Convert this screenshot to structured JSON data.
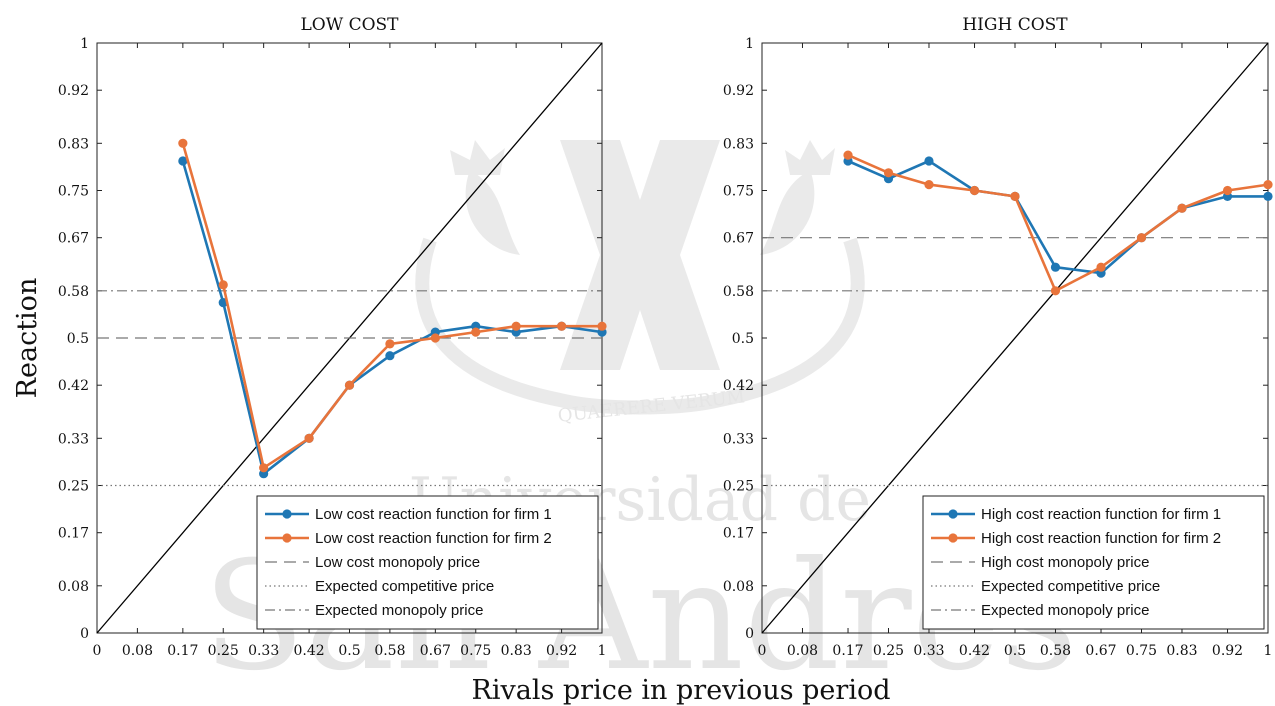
{
  "figure": {
    "ylabel": "Reaction",
    "xlabel": "Rivals price in previous period",
    "watermark": {
      "motto": "QUAERERE VERUM",
      "line1": "Universidad de",
      "line2": "San Andrés"
    }
  },
  "chart_data": [
    {
      "type": "line",
      "title": "LOW COST",
      "xlim": [
        0,
        1
      ],
      "ylim": [
        0,
        1
      ],
      "x_ticks": [
        "0",
        "0.08",
        "0.17",
        "0.25",
        "0.33",
        "0.42",
        "0.5",
        "0.58",
        "0.67",
        "0.75",
        "0.83",
        "0.92",
        "1"
      ],
      "y_ticks": [
        "0",
        "0.08",
        "0.17",
        "0.25",
        "0.33",
        "0.42",
        "0.5",
        "0.58",
        "0.67",
        "0.75",
        "0.83",
        "0.92",
        "1"
      ],
      "x": [
        0.17,
        0.25,
        0.33,
        0.42,
        0.5,
        0.58,
        0.67,
        0.75,
        0.83,
        0.92,
        1
      ],
      "series": [
        {
          "name": "Low cost reaction function for firm 1",
          "color": "#1f77b4",
          "values": [
            0.8,
            0.56,
            0.27,
            0.33,
            0.42,
            0.47,
            0.51,
            0.52,
            0.51,
            0.52,
            0.51
          ]
        },
        {
          "name": "Low cost reaction function for firm 2",
          "color": "#e8743b",
          "values": [
            0.83,
            0.59,
            0.28,
            0.33,
            0.42,
            0.49,
            0.5,
            0.51,
            0.52,
            0.52,
            0.52
          ]
        }
      ],
      "reference_lines": [
        {
          "name": "Low cost monopoly price",
          "style": "dashed",
          "y": 0.5
        },
        {
          "name": "Expected competitive price",
          "style": "dotted",
          "y": 0.25
        },
        {
          "name": "Expected monopoly price",
          "style": "dashdot",
          "y": 0.58
        }
      ],
      "diagonal": true,
      "legend_position": "bottom-right"
    },
    {
      "type": "line",
      "title": "HIGH COST",
      "xlim": [
        0,
        1
      ],
      "ylim": [
        0,
        1
      ],
      "x_ticks": [
        "0",
        "0.08",
        "0.17",
        "0.25",
        "0.33",
        "0.42",
        "0.5",
        "0.58",
        "0.67",
        "0.75",
        "0.83",
        "0.92",
        "1"
      ],
      "y_ticks": [
        "0",
        "0.08",
        "0.17",
        "0.25",
        "0.33",
        "0.42",
        "0.5",
        "0.58",
        "0.67",
        "0.75",
        "0.83",
        "0.92",
        "1"
      ],
      "x": [
        0.17,
        0.25,
        0.33,
        0.42,
        0.5,
        0.58,
        0.67,
        0.75,
        0.83,
        0.92,
        1
      ],
      "series": [
        {
          "name": "High cost reaction function for firm 1",
          "color": "#1f77b4",
          "values": [
            0.8,
            0.77,
            0.8,
            0.75,
            0.74,
            0.62,
            0.61,
            0.67,
            0.72,
            0.74,
            0.74
          ]
        },
        {
          "name": "High cost reaction function for firm 2",
          "color": "#e8743b",
          "values": [
            0.81,
            0.78,
            0.76,
            0.75,
            0.74,
            0.58,
            0.62,
            0.67,
            0.72,
            0.75,
            0.76
          ]
        }
      ],
      "reference_lines": [
        {
          "name": "High cost monopoly price",
          "style": "dashed",
          "y": 0.67
        },
        {
          "name": "Expected competitive price",
          "style": "dotted",
          "y": 0.25
        },
        {
          "name": "Expected monopoly price",
          "style": "dashdot",
          "y": 0.58
        }
      ],
      "diagonal": true,
      "legend_position": "bottom-right"
    }
  ]
}
